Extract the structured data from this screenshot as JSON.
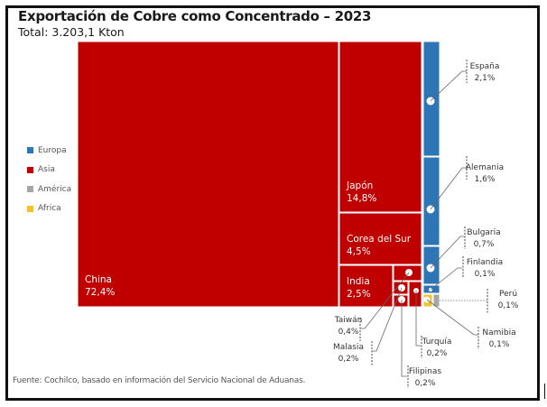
{
  "title": "Exportación de Cobre como Concentrado – 2023",
  "subtitle": "Total:  3.203,1 Kton",
  "source": "Fuente: Cochilco, basado en información del Servicio Nacional de Aduanas.",
  "colors": {
    "Europa": "#2e75b6",
    "Asia": "#c00000",
    "America": "#a6a6a6",
    "Africa": "#f2c12e"
  },
  "chart_data": {
    "type": "treemap",
    "title": "Exportación de Cobre como Concentrado – 2023",
    "subtitle": "Total:  3.203,1 Kton",
    "unit": "% del total",
    "total_kton": 3203.1,
    "legend": {
      "position": "left",
      "entries": [
        {
          "label": "Europa",
          "color": "#2e75b6"
        },
        {
          "label": "Asia",
          "color": "#c00000"
        },
        {
          "label": "América",
          "color": "#a6a6a6"
        },
        {
          "label": "Africa",
          "color": "#f2c12e"
        }
      ]
    },
    "items": [
      {
        "country": "China",
        "region": "Asia",
        "value": 72.4,
        "label": "72,4%"
      },
      {
        "country": "Japón",
        "region": "Asia",
        "value": 14.8,
        "label": "14,8%"
      },
      {
        "country": "Corea del Sur",
        "region": "Asia",
        "value": 4.5,
        "label": "4,5%"
      },
      {
        "country": "India",
        "region": "Asia",
        "value": 2.5,
        "label": "2,5%"
      },
      {
        "country": "Taiwán",
        "region": "Asia",
        "value": 0.4,
        "label": "0,4%"
      },
      {
        "country": "Malasia",
        "region": "Asia",
        "value": 0.2,
        "label": "0,2%"
      },
      {
        "country": "Filipinas",
        "region": "Asia",
        "value": 0.2,
        "label": "0,2%"
      },
      {
        "country": "Turquía",
        "region": "Asia",
        "value": 0.2,
        "label": "0,2%"
      },
      {
        "country": "España",
        "region": "Europa",
        "value": 2.1,
        "label": "2,1%"
      },
      {
        "country": "Alemania",
        "region": "Europa",
        "value": 1.6,
        "label": "1,6%"
      },
      {
        "country": "Bulgaria",
        "region": "Europa",
        "value": 0.7,
        "label": "0,7%"
      },
      {
        "country": "Finlandia",
        "region": "Europa",
        "value": 0.1,
        "label": "0,1%"
      },
      {
        "country": "Namibia",
        "region": "Africa",
        "value": 0.1,
        "label": "0,1%"
      },
      {
        "country": "Perú",
        "region": "America",
        "value": 0.1,
        "label": "0,1%"
      }
    ]
  }
}
